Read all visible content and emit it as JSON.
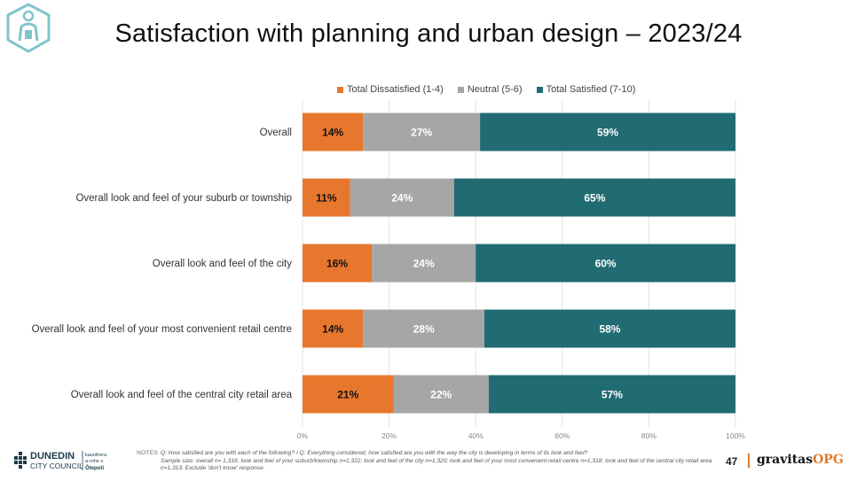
{
  "page": {
    "title": "Satisfaction with planning and urban design – 2023/24",
    "page_number": "47"
  },
  "colors": {
    "dissatisfied": "#E8772E",
    "neutral": "#A6A6A6",
    "satisfied": "#216B72"
  },
  "chart_data": {
    "type": "bar",
    "orientation": "horizontal",
    "stacked": true,
    "categories": [
      "Overall",
      "Overall look and feel of your suburb or township",
      "Overall look and feel of the city",
      "Overall look and feel of your most convenient retail centre",
      "Overall look and feel of the central city retail area"
    ],
    "series": [
      {
        "name": "Total Dissatisfied (1-4)",
        "values": [
          14,
          11,
          16,
          14,
          21
        ],
        "labels": [
          "14%",
          "11%",
          "16%",
          "14%",
          "21%"
        ]
      },
      {
        "name": "Neutral (5-6)",
        "values": [
          27,
          24,
          24,
          28,
          22
        ],
        "labels": [
          "27%",
          "24%",
          "24%",
          "28%",
          "22%"
        ]
      },
      {
        "name": "Total Satisfied (7-10)",
        "values": [
          59,
          65,
          60,
          58,
          57
        ],
        "labels": [
          "59%",
          "65%",
          "60%",
          "58%",
          "57%"
        ]
      }
    ],
    "xlim": [
      0,
      100
    ],
    "x_ticks": [
      "0%",
      "20%",
      "40%",
      "60%",
      "80%",
      "100%"
    ],
    "legend_position": "top",
    "grid": true
  },
  "footer": {
    "council_name_line1": "DUNEDIN",
    "council_name_line2": "CITY COUNCIL",
    "council_maori_line1": "kaunihera",
    "council_maori_line2": "a-rohe o",
    "council_maori_line3": "Ōtepoti",
    "notes_label": "NOTES",
    "notes_line1": "Q: How satisfied are you with each of the following?  /  Q: Everything considered, how satisfied are you with the way the city is developing in terms of its look and feel?",
    "notes_line2": "Sample size: overall n= 1,316; look and feel of your suburb/township n=1,322; look and feel of the city n=1,320; look and feel of your most convenient retail centre n=1,318; look and feel of the central city retail area n=1,313. Exclude 'don't know' response.",
    "brand_main": "gravitas",
    "brand_accent": "OPG"
  }
}
